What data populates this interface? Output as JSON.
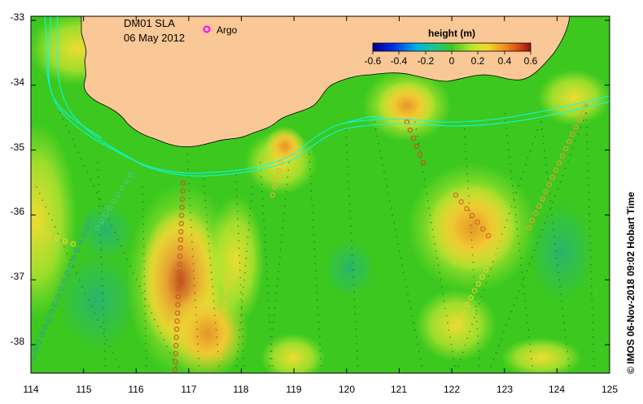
{
  "map": {
    "title_line1": "DM01 SLA",
    "title_line2": "06 May 2012",
    "argo_label": "Argo",
    "colorbar_title": "height (m)",
    "colorbar_ticks": [
      "-0.6",
      "-0.4",
      "-0.2",
      "0",
      "0.2",
      "0.4",
      "0.6"
    ],
    "x_ticks": [
      "114",
      "115",
      "116",
      "117",
      "118",
      "119",
      "120",
      "121",
      "122",
      "123",
      "124",
      "125"
    ],
    "y_ticks": [
      "-33",
      "-34",
      "-35",
      "-36",
      "-37",
      "-38"
    ],
    "credit": "© IMOS 06-Nov-2018 09:02 Hobart Time",
    "lon_range": [
      114,
      125
    ],
    "lat_range": [
      -38.5,
      -33
    ],
    "colors": {
      "land": "#FAC896",
      "ocean_base": "#3CC81E",
      "argo": "#FF00FF",
      "contour": "#00FFFF"
    }
  }
}
